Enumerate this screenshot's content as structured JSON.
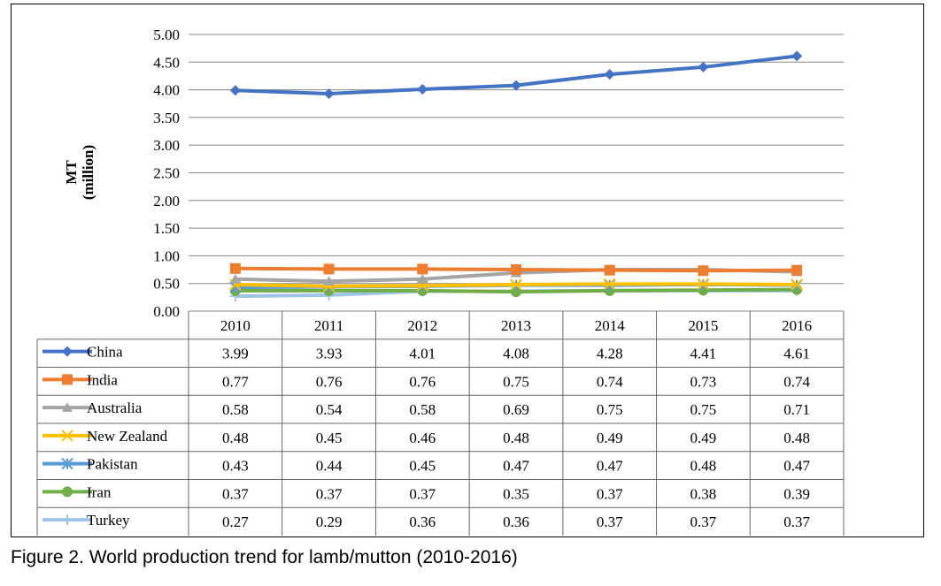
{
  "caption": "Figure 2. World production trend for lamb/mutton (2010-2016)",
  "chart_data": {
    "type": "line",
    "title": "",
    "xlabel": "",
    "ylabel": "MT\n(million)",
    "ylim": [
      0,
      5
    ],
    "yticks": [
      "0.00",
      "0.50",
      "1.00",
      "1.50",
      "2.00",
      "2.50",
      "3.00",
      "3.50",
      "4.00",
      "4.50",
      "5.00"
    ],
    "grid": true,
    "legend": "data-table-below",
    "categories": [
      "2010",
      "2011",
      "2012",
      "2013",
      "2014",
      "2015",
      "2016"
    ],
    "series": [
      {
        "name": "China",
        "color": "#4472C4",
        "marker": "diamond",
        "values": [
          3.99,
          3.93,
          4.01,
          4.08,
          4.28,
          4.41,
          4.61
        ],
        "labels": [
          "3.99",
          "3.93",
          "4.01",
          "4.08",
          "4.28",
          "4.41",
          "4.61"
        ]
      },
      {
        "name": "India",
        "color": "#ED7D31",
        "marker": "square",
        "values": [
          0.77,
          0.76,
          0.76,
          0.75,
          0.74,
          0.73,
          0.74
        ],
        "labels": [
          "0.77",
          "0.76",
          "0.76",
          "0.75",
          "0.74",
          "0.73",
          "0.74"
        ]
      },
      {
        "name": "Australia",
        "color": "#A5A5A5",
        "marker": "triangle",
        "values": [
          0.58,
          0.54,
          0.58,
          0.69,
          0.75,
          0.75,
          0.71
        ],
        "labels": [
          "0.58",
          "0.54",
          "0.58",
          "0.69",
          "0.75",
          "0.75",
          "0.71"
        ]
      },
      {
        "name": "New Zealand",
        "color": "#FFC000",
        "marker": "x",
        "values": [
          0.48,
          0.45,
          0.46,
          0.48,
          0.49,
          0.49,
          0.48
        ],
        "labels": [
          "0.48",
          "0.45",
          "0.46",
          "0.48",
          "0.49",
          "0.49",
          "0.48"
        ]
      },
      {
        "name": "Pakistan",
        "color": "#5B9BD5",
        "marker": "star",
        "values": [
          0.43,
          0.44,
          0.45,
          0.47,
          0.47,
          0.48,
          0.47
        ],
        "labels": [
          "0.43",
          "0.44",
          "0.45",
          "0.47",
          "0.47",
          "0.48",
          "0.47"
        ]
      },
      {
        "name": "Iran",
        "color": "#70AD47",
        "marker": "circle",
        "values": [
          0.37,
          0.37,
          0.37,
          0.35,
          0.37,
          0.38,
          0.39
        ],
        "labels": [
          "0.37",
          "0.37",
          "0.37",
          "0.35",
          "0.37",
          "0.38",
          "0.39"
        ]
      },
      {
        "name": "Turkey",
        "color": "#9DC3E6",
        "marker": "plus",
        "values": [
          0.27,
          0.29,
          0.36,
          0.36,
          0.37,
          0.37,
          0.37
        ],
        "labels": [
          "0.27",
          "0.29",
          "0.36",
          "0.36",
          "0.37",
          "0.37",
          "0.37"
        ]
      }
    ]
  }
}
